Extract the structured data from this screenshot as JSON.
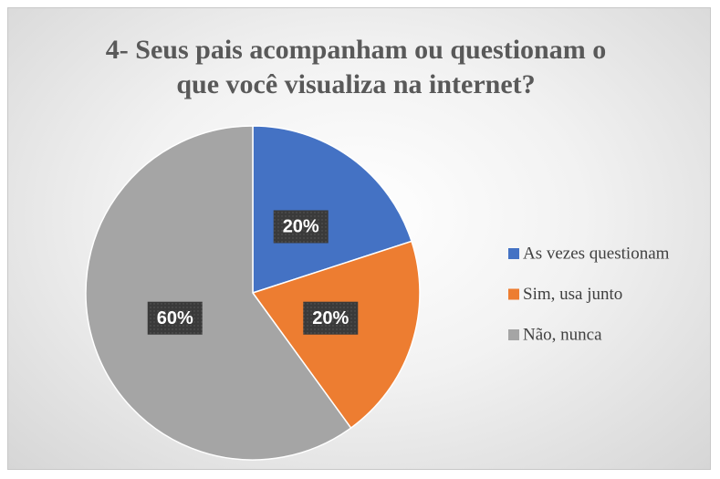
{
  "chart_data": {
    "type": "pie",
    "title": "4- Seus pais acompanham ou questionam o que você visualiza na internet?",
    "categories": [
      "As vezes questionam",
      "Sim, usa junto",
      "Não, nunca"
    ],
    "values": [
      20,
      20,
      60
    ],
    "value_labels": [
      "20%",
      "20%",
      "60%"
    ],
    "colors": [
      "#4472c4",
      "#ed7d31",
      "#a5a5a5"
    ],
    "legend": "right"
  }
}
